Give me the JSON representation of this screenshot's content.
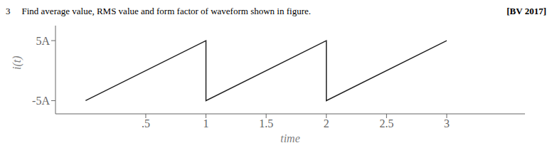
{
  "chart_data": {
    "type": "line",
    "title": "Find average value, RMS value and form factor of waveform shown in figure.",
    "annotations": [
      "3",
      "[BV 2017]"
    ],
    "xlabel": "time",
    "ylabel": "i(t)",
    "x": [
      0,
      1,
      1,
      2,
      2,
      3
    ],
    "values": [
      -5,
      5,
      -5,
      5,
      -5,
      5
    ],
    "color": "#222222",
    "xlim": [
      -0.25,
      3.65
    ],
    "xticks": [
      {
        "value": 0.5,
        "label": ".5"
      },
      1,
      1.5,
      2,
      2.5,
      3
    ],
    "ylim": [
      -7.2,
      7.5
    ],
    "yticks": [
      {
        "value": -5,
        "label": "-5A"
      },
      {
        "value": 5,
        "label": "5A"
      }
    ],
    "grid": false
  }
}
